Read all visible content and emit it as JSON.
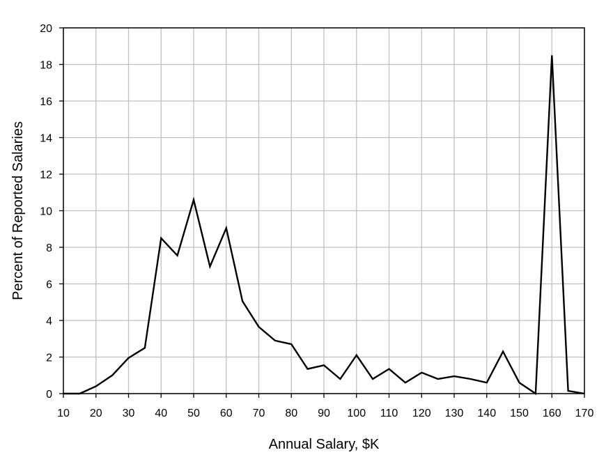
{
  "chart_data": {
    "type": "line",
    "xlabel": "Annual Salary, $K",
    "ylabel": "Percent of Reported Salaries",
    "xlim": [
      10,
      170
    ],
    "ylim": [
      0,
      20
    ],
    "x_ticks": [
      10,
      20,
      30,
      40,
      50,
      60,
      70,
      80,
      90,
      100,
      110,
      120,
      130,
      140,
      150,
      160,
      170
    ],
    "y_ticks": [
      0,
      2,
      4,
      6,
      8,
      10,
      12,
      14,
      16,
      18,
      20
    ],
    "grid": true,
    "series": [
      {
        "x": [
          10,
          15,
          20,
          25,
          30,
          35,
          40,
          45,
          50,
          55,
          60,
          65,
          70,
          75,
          80,
          85,
          90,
          95,
          100,
          105,
          110,
          115,
          120,
          125,
          130,
          135,
          140,
          145,
          150,
          155,
          160,
          165,
          170
        ],
        "y": [
          0,
          0,
          0.4,
          1.0,
          1.95,
          2.5,
          8.5,
          7.55,
          10.6,
          6.95,
          9.05,
          5.05,
          3.65,
          2.9,
          2.7,
          1.35,
          1.55,
          0.8,
          2.1,
          0.8,
          1.35,
          0.6,
          1.15,
          0.8,
          0.95,
          0.8,
          0.6,
          2.3,
          0.6,
          0.0,
          18.5,
          0.15,
          0.0
        ],
        "color": "#000000"
      }
    ]
  }
}
